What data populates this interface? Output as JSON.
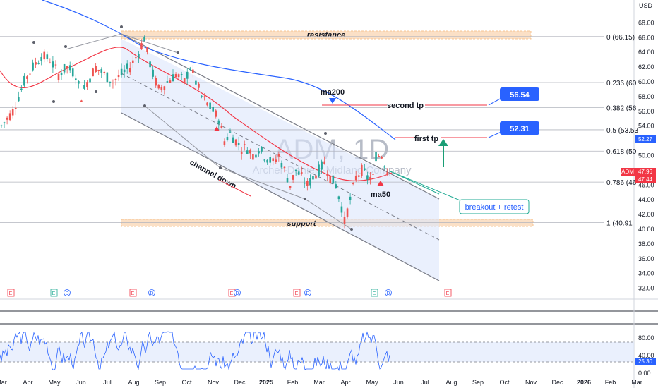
{
  "chart_data": {
    "type": "candlestick",
    "symbol": "ADM",
    "watermark_symbol": "ADM, 1D",
    "watermark_name": "Archer-Daniels-Midland Company",
    "currency_label": "USD",
    "x_ticks": [
      "Mar",
      "Apr",
      "May",
      "Jun",
      "Jul",
      "Aug",
      "Sep",
      "Oct",
      "Nov",
      "Dec",
      "2025",
      "Feb",
      "Mar",
      "Apr",
      "May",
      "Jun",
      "Jul",
      "Aug",
      "Sep",
      "Oct",
      "Nov",
      "Dec",
      "2026",
      "Feb",
      "Mar"
    ],
    "y_ticks": [
      "68.00",
      "66.00",
      "64.00",
      "62.00",
      "60.00",
      "58.00",
      "56.00",
      "54.00",
      "52.00",
      "50.00",
      "48.00",
      "46.00",
      "44.00",
      "42.00",
      "40.00",
      "38.00",
      "36.00",
      "34.00",
      "32.00"
    ],
    "ylim": [
      31,
      69
    ],
    "price_path": [
      [
        0,
        54
      ],
      [
        4,
        56
      ],
      [
        8,
        60
      ],
      [
        11,
        62
      ],
      [
        14,
        63.5
      ],
      [
        17,
        63
      ],
      [
        20,
        61
      ],
      [
        23,
        62
      ],
      [
        26,
        61
      ],
      [
        28,
        58
      ],
      [
        30,
        60
      ],
      [
        33,
        62
      ],
      [
        36,
        61
      ],
      [
        39,
        60
      ],
      [
        42,
        61
      ],
      [
        45,
        62
      ],
      [
        48,
        64
      ],
      [
        50,
        66
      ],
      [
        51,
        64
      ],
      [
        53,
        61
      ],
      [
        55,
        59
      ],
      [
        58,
        60
      ],
      [
        61,
        61
      ],
      [
        64,
        60
      ],
      [
        66,
        62
      ],
      [
        68,
        60
      ],
      [
        70,
        58
      ],
      [
        72,
        57
      ],
      [
        74,
        56
      ],
      [
        76,
        55
      ],
      [
        78,
        52
      ],
      [
        80,
        53
      ],
      [
        82,
        52
      ],
      [
        84,
        51
      ],
      [
        86,
        51
      ],
      [
        88,
        50
      ],
      [
        90,
        51
      ],
      [
        92,
        50
      ],
      [
        95,
        49
      ],
      [
        97,
        50
      ],
      [
        99,
        48
      ],
      [
        101,
        46
      ],
      [
        103,
        48
      ],
      [
        105,
        47
      ],
      [
        107,
        46
      ],
      [
        109,
        47
      ],
      [
        111,
        48
      ],
      [
        113,
        49
      ],
      [
        115,
        47
      ],
      [
        117,
        46
      ],
      [
        119,
        43
      ],
      [
        120,
        41
      ],
      [
        122,
        44
      ],
      [
        124,
        47
      ],
      [
        126,
        48
      ],
      [
        128,
        47
      ],
      [
        130,
        47
      ],
      [
        131,
        50
      ],
      [
        133,
        50
      ],
      [
        135,
        48
      ],
      [
        136,
        47.5
      ]
    ],
    "current_price": "47.96",
    "price_tags": [
      "52.27",
      "47.96",
      "47.44",
      "25.30"
    ],
    "fib_levels": [
      {
        "label": "0 (66.15)",
        "value": 66.15
      },
      {
        "label": "0.236 (60",
        "value": 59.9
      },
      {
        "label": "0.382 (56",
        "value": 56.5
      },
      {
        "label": "0.5 (53.53",
        "value": 53.5
      },
      {
        "label": "0.618 (50",
        "value": 50.6
      },
      {
        "label": "0.786 (46",
        "value": 46.4
      },
      {
        "label": "1 (40.91",
        "value": 40.91
      }
    ],
    "annotations": {
      "resistance": "resistance",
      "support": "support",
      "channel": "channel down",
      "ma200": "ma200",
      "ma50": "ma50",
      "second_tp": "second tp",
      "first_tp": "first tp",
      "breakout": "breakout + retest",
      "target_2": "56.54",
      "target_1": "52.31"
    },
    "event_markers": [
      "E",
      "E",
      "D",
      "E",
      "D",
      "E",
      "D",
      "E",
      "D",
      "E",
      "D",
      "E"
    ],
    "oscillator": {
      "y_ticks": [
        "80.00",
        "40.00",
        "0.00"
      ],
      "band": [
        25,
        75
      ],
      "value": "25.30"
    },
    "colors": {
      "up": "#26a69a",
      "down": "#ef5350",
      "ma200": "#2962ff",
      "ma50": "#f23645",
      "channel_fill": "#dce6fb",
      "zone": "#f7c592",
      "oscillator": "#2962ff",
      "tag_blue": "#2962ff"
    }
  }
}
